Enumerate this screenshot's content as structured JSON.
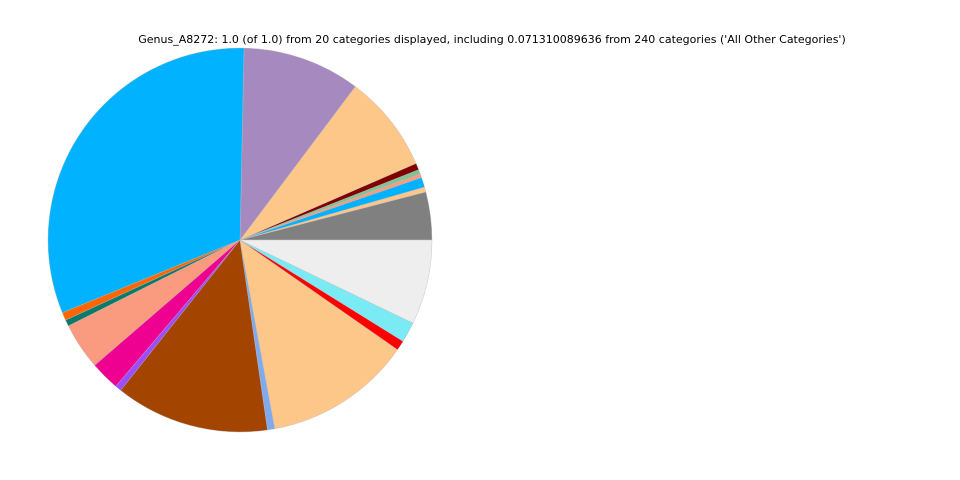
{
  "chart_data": {
    "type": "pie",
    "title": "Genus_A8272: 1.0 (of 1.0) from 20 categories displayed, including 0.071310089636 from 240 categories ('All Other Categories')",
    "start_angle_deg": 0,
    "direction": "counterclockwise",
    "legend": "none",
    "slices": [
      {
        "value": 0.0403,
        "color": "#808080"
      },
      {
        "value": 0.0042,
        "color": "#fdc68a"
      },
      {
        "value": 0.0083,
        "color": "#00b2ff"
      },
      {
        "value": 0.0033,
        "color": "#fa9a7e"
      },
      {
        "value": 0.0036,
        "color": "#7fc497"
      },
      {
        "value": 0.0056,
        "color": "#800000"
      },
      {
        "value": 0.0822,
        "color": "#fdc78a"
      },
      {
        "value": 0.0992,
        "color": "#a689be"
      },
      {
        "value": 0.3153,
        "color": "#00b2ff"
      },
      {
        "value": 0.0067,
        "color": "#ff6600"
      },
      {
        "value": 0.0053,
        "color": "#0b7a6b"
      },
      {
        "value": 0.0394,
        "color": "#fa9a7e"
      },
      {
        "value": 0.0247,
        "color": "#ee0091"
      },
      {
        "value": 0.0053,
        "color": "#9b4dff"
      },
      {
        "value": 0.1297,
        "color": "#a34500"
      },
      {
        "value": 0.0061,
        "color": "#7faaf0"
      },
      {
        "value": 0.1242,
        "color": "#fdc78a"
      },
      {
        "value": 0.0083,
        "color": "#ff0000"
      },
      {
        "value": 0.0172,
        "color": "#7aebf5"
      },
      {
        "value": 0.0713,
        "color": "#eeeeee"
      }
    ]
  }
}
